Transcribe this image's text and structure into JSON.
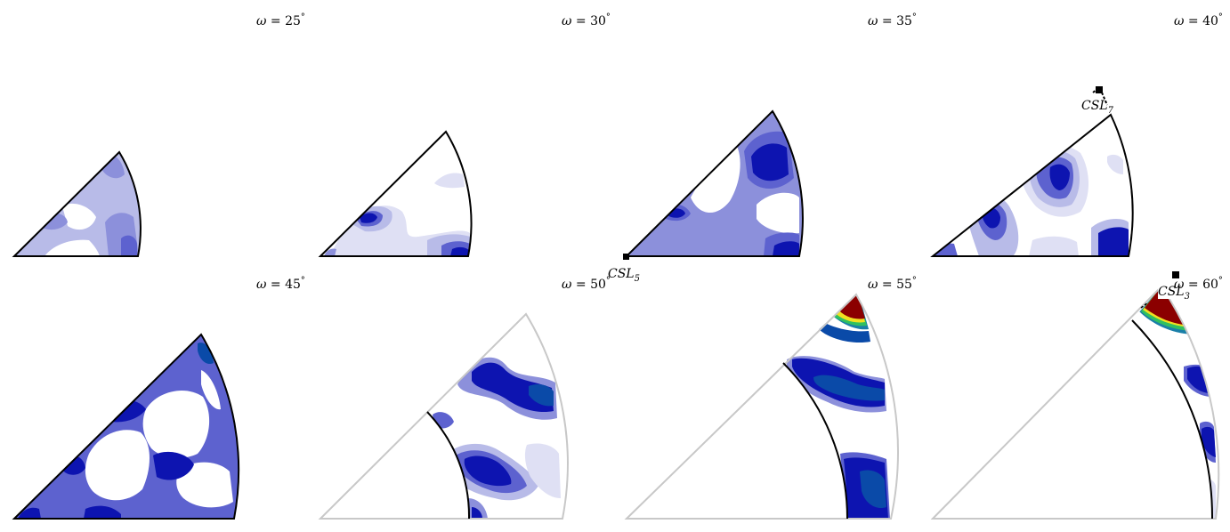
{
  "panels": [
    {
      "omega": "25",
      "csl": ""
    },
    {
      "omega": "30",
      "csl": ""
    },
    {
      "omega": "35",
      "csl": "5"
    },
    {
      "omega": "40",
      "csl": "7"
    },
    {
      "omega": "45",
      "csl": ""
    },
    {
      "omega": "50",
      "csl": ""
    },
    {
      "omega": "55",
      "csl": ""
    },
    {
      "omega": "60",
      "csl": "3"
    }
  ],
  "omega_symbol": "ω",
  "degree_symbol": "°",
  "csl_prefix": "CSL",
  "colors": {
    "outline": "#000000",
    "outline_grey": "#c8c8c8",
    "level1": "#dfe0f4",
    "level2": "#b8bbe8",
    "level3": "#8c90db",
    "level4": "#5d62cf",
    "level5": "#2a32c2",
    "level6": "#0d14b0",
    "level7": "#0a4aa8",
    "level8": "#1a7fa8",
    "high_red": "#8b0000",
    "band_yellow": "#f0e020",
    "band_green": "#30c060",
    "band_cyan": "#20c0e0"
  }
}
